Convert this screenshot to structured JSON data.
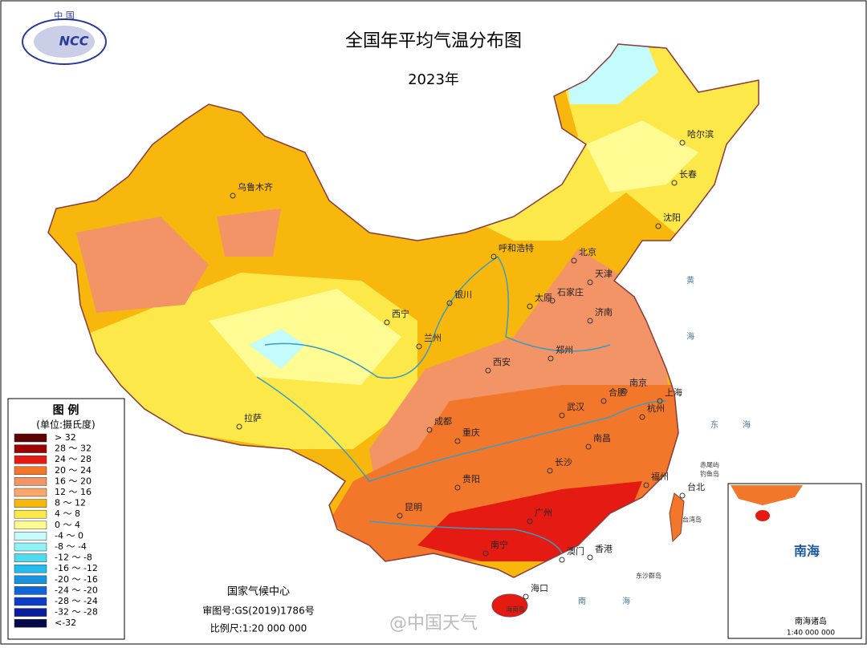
{
  "header": {
    "logo_top": "中 国",
    "logo": "NCC",
    "title": "全国年平均气温分布图",
    "subtitle": "2023年"
  },
  "legend": {
    "title": "图 例",
    "unit": "(单位:摄氏度)",
    "items": [
      {
        "label": "> 32",
        "color": "#5c0000"
      },
      {
        "label": "28 ～ 32",
        "color": "#9e0000"
      },
      {
        "label": "24 ～ 28",
        "color": "#e51a12"
      },
      {
        "label": "20 ～ 24",
        "color": "#f2772a"
      },
      {
        "label": "16 ～ 20",
        "color": "#f29466"
      },
      {
        "label": "12 ～ 16",
        "color": "#f7a86a"
      },
      {
        "label": "8 ～ 12",
        "color": "#f7b70c"
      },
      {
        "label": "4 ～ 8",
        "color": "#fde84a"
      },
      {
        "label": "0 ～ 4",
        "color": "#fdfb92"
      },
      {
        "label": "-4 ～ 0",
        "color": "#c4fbfb"
      },
      {
        "label": "-8 ～ -4",
        "color": "#8ef2f7"
      },
      {
        "label": "-12 ～ -8",
        "color": "#4fdcef"
      },
      {
        "label": "-16 ～ -12",
        "color": "#22bdec"
      },
      {
        "label": "-20 ～ -16",
        "color": "#1893e0"
      },
      {
        "label": "-24 ～ -20",
        "color": "#0f66d8"
      },
      {
        "label": "-28 ～ -24",
        "color": "#0a3ec8"
      },
      {
        "label": "-32 ～ -28",
        "color": "#071f9e"
      },
      {
        "label": "<-32",
        "color": "#030a4a"
      }
    ]
  },
  "cities": [
    {
      "label": "乌鲁木齐"
    },
    {
      "label": "哈尔滨"
    },
    {
      "label": "长春"
    },
    {
      "label": "沈阳"
    },
    {
      "label": "呼和浩特"
    },
    {
      "label": "北京"
    },
    {
      "label": "天津"
    },
    {
      "label": "石家庄"
    },
    {
      "label": "太原"
    },
    {
      "label": "银川"
    },
    {
      "label": "西宁"
    },
    {
      "label": "兰州"
    },
    {
      "label": "济南"
    },
    {
      "label": "郑州"
    },
    {
      "label": "西安"
    },
    {
      "label": "南京"
    },
    {
      "label": "合肥"
    },
    {
      "label": "上海"
    },
    {
      "label": "杭州"
    },
    {
      "label": "武汉"
    },
    {
      "label": "成都"
    },
    {
      "label": "重庆"
    },
    {
      "label": "拉萨"
    },
    {
      "label": "南昌"
    },
    {
      "label": "长沙"
    },
    {
      "label": "贵阳"
    },
    {
      "label": "福州"
    },
    {
      "label": "台北"
    },
    {
      "label": "昆明"
    },
    {
      "label": "广州"
    },
    {
      "label": "南宁"
    },
    {
      "label": "澳门"
    },
    {
      "label": "香港"
    },
    {
      "label": "海口"
    }
  ],
  "places": [
    {
      "label": "钓鱼岛"
    },
    {
      "label": "赤尾屿"
    },
    {
      "label": "台湾岛"
    },
    {
      "label": "东沙群岛"
    },
    {
      "label": "海南岛"
    }
  ],
  "seas": [
    {
      "label": "黄"
    },
    {
      "label": "海"
    },
    {
      "label": "东"
    },
    {
      "label": "海"
    },
    {
      "label": "南"
    },
    {
      "label": "海"
    }
  ],
  "footer": {
    "org": "国家气候中心",
    "approval": "审图号:GS(2019)1786号",
    "scale": "比例尺:1:20 000 000"
  },
  "inset": {
    "title": "南海",
    "caption": "南海诸岛",
    "scale": "1:40 000 000"
  },
  "watermark": "@中国天气"
}
